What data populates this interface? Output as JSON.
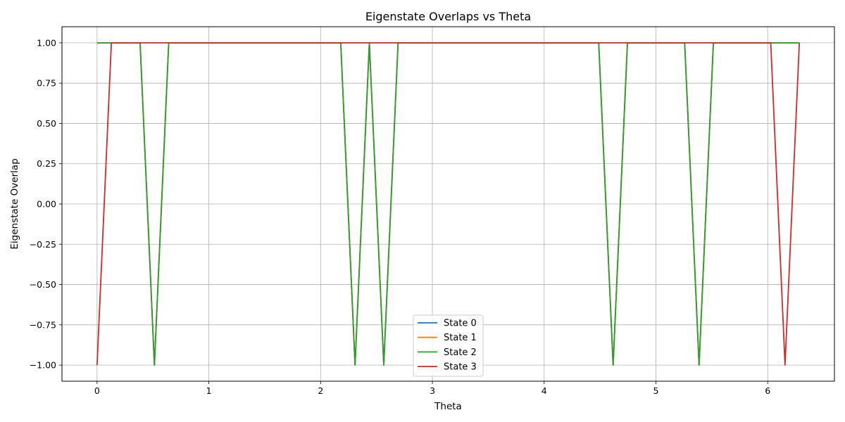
{
  "chart_data": {
    "type": "line",
    "title": "Eigenstate Overlaps vs Theta",
    "xlabel": "Theta",
    "ylabel": "Eigenstate Overlap",
    "xlim": [
      -0.314,
      6.597
    ],
    "ylim": [
      -1.1,
      1.1
    ],
    "xticks": [
      0,
      1,
      2,
      3,
      4,
      5,
      6
    ],
    "xtick_labels": [
      "0",
      "1",
      "2",
      "3",
      "4",
      "5",
      "6"
    ],
    "yticks": [
      -1.0,
      -0.75,
      -0.5,
      -0.25,
      0.0,
      0.25,
      0.5,
      0.75,
      1.0
    ],
    "ytick_labels": [
      "−1.00",
      "−0.75",
      "−0.50",
      "−0.25",
      "0.00",
      "0.25",
      "0.50",
      "0.75",
      "1.00"
    ],
    "grid": true,
    "legend_position": "bottom-center",
    "series": [
      {
        "name": "State 0",
        "color": "#1f77b4",
        "x": [
          0,
          0.385,
          0.513,
          0.641,
          2.18,
          2.308,
          2.436,
          2.565,
          2.693,
          4.488,
          4.617,
          4.745,
          5.257,
          5.386,
          5.514,
          6.283
        ],
        "y": [
          1,
          1,
          -1,
          1,
          1,
          -1,
          1,
          -1,
          1,
          1,
          -1,
          1,
          1,
          -1,
          1,
          1
        ]
      },
      {
        "name": "State 1",
        "color": "#ff7f0e",
        "x": [
          0,
          0.385,
          0.513,
          0.641,
          2.18,
          2.308,
          2.436,
          2.565,
          2.693,
          4.488,
          4.617,
          4.745,
          5.257,
          5.386,
          5.514,
          6.283
        ],
        "y": [
          1,
          1,
          -1,
          1,
          1,
          -1,
          1,
          -1,
          1,
          1,
          -1,
          1,
          1,
          -1,
          1,
          1
        ]
      },
      {
        "name": "State 2",
        "color": "#2ca02c",
        "x": [
          0,
          0.385,
          0.513,
          0.641,
          2.18,
          2.308,
          2.436,
          2.565,
          2.693,
          4.488,
          4.617,
          4.745,
          5.257,
          5.386,
          5.514,
          6.283
        ],
        "y": [
          1,
          1,
          -1,
          1,
          1,
          -1,
          1,
          -1,
          1,
          1,
          -1,
          1,
          1,
          -1,
          1,
          1
        ]
      },
      {
        "name": "State 3",
        "color": "#d62728",
        "x": [
          0,
          0.128,
          6.027,
          6.155,
          6.283
        ],
        "y": [
          -1,
          1,
          1,
          -1,
          1
        ]
      }
    ]
  }
}
